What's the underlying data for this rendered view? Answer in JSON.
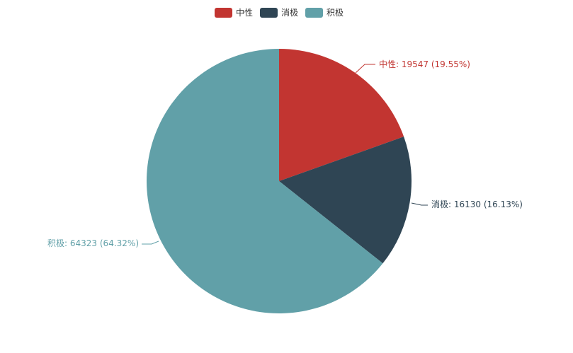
{
  "chart_data": {
    "type": "pie",
    "legend_position": "top",
    "series": [
      {
        "name": "中性",
        "value": 19547,
        "percent": "19.55%",
        "color": "#c23531",
        "label": "中性: 19547 (19.55%)"
      },
      {
        "name": "消极",
        "value": 16130,
        "percent": "16.13%",
        "color": "#2f4554",
        "label": "消极: 16130 (16.13%)"
      },
      {
        "name": "积极",
        "value": 64323,
        "percent": "64.32%",
        "color": "#61a0a8",
        "label": "积极: 64323 (64.32%)"
      }
    ]
  }
}
